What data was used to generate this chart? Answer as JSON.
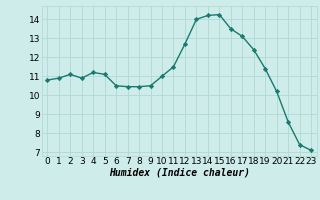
{
  "x": [
    0,
    1,
    2,
    3,
    4,
    5,
    6,
    7,
    8,
    9,
    10,
    11,
    12,
    13,
    14,
    15,
    16,
    17,
    18,
    19,
    20,
    21,
    22,
    23
  ],
  "y": [
    10.8,
    10.9,
    11.1,
    10.9,
    11.2,
    11.1,
    10.5,
    10.45,
    10.45,
    10.5,
    11.0,
    11.5,
    12.7,
    14.0,
    14.2,
    14.25,
    13.5,
    13.1,
    12.4,
    11.4,
    10.2,
    8.6,
    7.4,
    7.1
  ],
  "line_color": "#1a7a6e",
  "marker": "D",
  "marker_size": 2.2,
  "bg_color": "#ceecea",
  "grid_color": "#b0d8d4",
  "xlabel": "Humidex (Indice chaleur)",
  "xlim": [
    -0.5,
    23.5
  ],
  "ylim": [
    6.8,
    14.7
  ],
  "yticks": [
    7,
    8,
    9,
    10,
    11,
    12,
    13,
    14
  ],
  "xticks": [
    0,
    1,
    2,
    3,
    4,
    5,
    6,
    7,
    8,
    9,
    10,
    11,
    12,
    13,
    14,
    15,
    16,
    17,
    18,
    19,
    20,
    21,
    22,
    23
  ],
  "xlabel_fontsize": 7,
  "tick_fontsize": 6.5,
  "line_width": 1.0
}
